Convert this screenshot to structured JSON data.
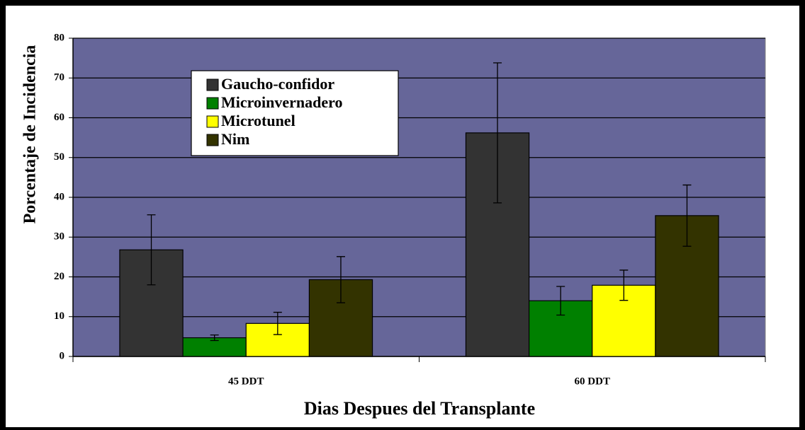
{
  "chart_data": {
    "type": "bar",
    "x_label": "Dias Despues del Transplante",
    "y_label": "Porcentaje de Incidencia",
    "categories": [
      "45 DDT",
      "60 DDT"
    ],
    "series": [
      {
        "name": "Gaucho-confidor",
        "color": "#333333",
        "values": [
          26.8,
          56.2
        ],
        "errors": [
          8.8,
          17.6
        ]
      },
      {
        "name": "Microinvernadero",
        "color": "#008000",
        "values": [
          4.7,
          14.0
        ],
        "errors": [
          0.7,
          3.6
        ]
      },
      {
        "name": "Microtunel",
        "color": "#ffff00",
        "values": [
          8.3,
          17.9
        ],
        "errors": [
          2.8,
          3.8
        ]
      },
      {
        "name": "Nim",
        "color": "#333300",
        "values": [
          19.3,
          35.4
        ],
        "errors": [
          5.8,
          7.7
        ]
      }
    ],
    "ylim": [
      0,
      80
    ],
    "yticks": [
      0,
      10,
      20,
      30,
      40,
      50,
      60,
      70,
      80
    ],
    "grid": true,
    "plot_background": "#666699",
    "legend": "upper left"
  }
}
